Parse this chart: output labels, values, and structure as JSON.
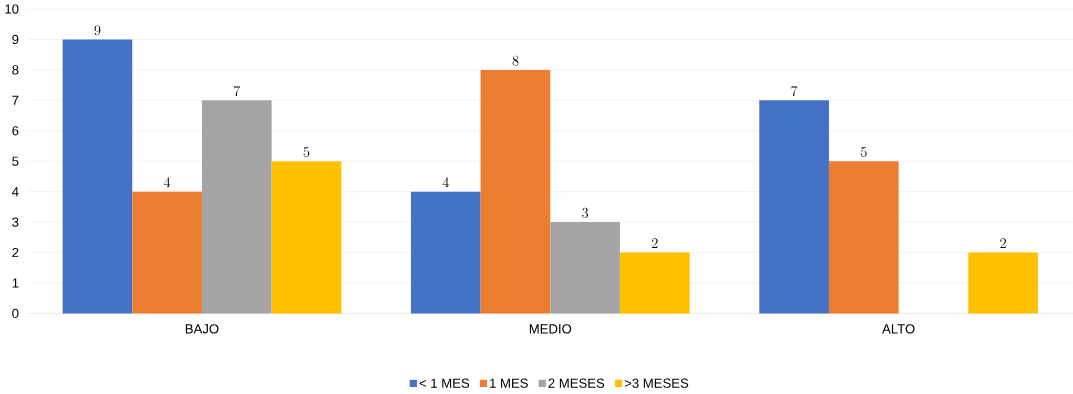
{
  "chart_data": {
    "type": "bar",
    "categories": [
      "BAJO",
      "MEDIO",
      "ALTO"
    ],
    "series": [
      {
        "name": "< 1 MES",
        "color": "#4472c4",
        "values": [
          9,
          4,
          7
        ]
      },
      {
        "name": "1 MES",
        "color": "#ed7d31",
        "values": [
          4,
          8,
          5
        ]
      },
      {
        "name": "2 MESES",
        "color": "#a5a5a5",
        "values": [
          7,
          3,
          null
        ]
      },
      {
        "name": ">3 MESES",
        "color": "#ffc000",
        "values": [
          5,
          2,
          2
        ]
      }
    ],
    "ylim": [
      0,
      10
    ],
    "yticks": [
      0,
      1,
      2,
      3,
      4,
      5,
      6,
      7,
      8,
      9,
      10
    ],
    "grid": "y",
    "legend": "bottom",
    "data_labels": true
  }
}
